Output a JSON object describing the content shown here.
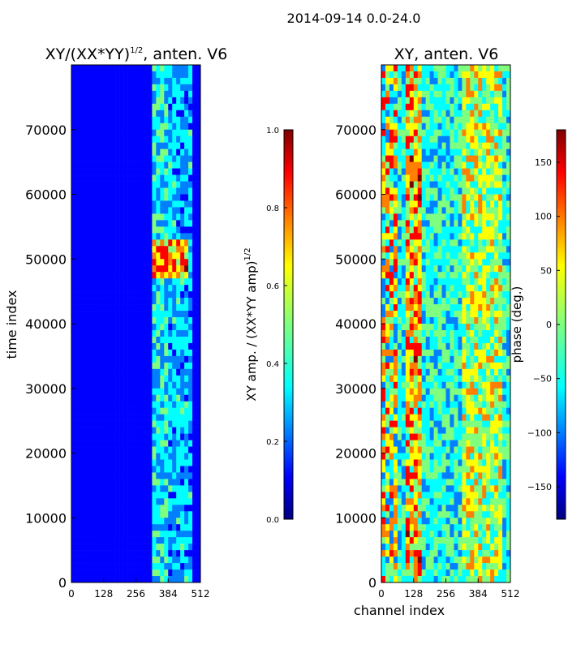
{
  "figure": {
    "suptitle": "2014-09-14 0.0-24.0"
  },
  "chart_data": [
    {
      "type": "heatmap",
      "title_main": "XY/(XX*YY)",
      "title_exp": "1/2",
      "title_tail": ", anten. V6",
      "xlabel": "",
      "ylabel": "time index",
      "xlim": [
        0,
        512
      ],
      "ylim": [
        0,
        80000
      ],
      "x_ticks": [
        0,
        128,
        256,
        384,
        512
      ],
      "y_ticks": [
        0,
        10000,
        20000,
        30000,
        40000,
        50000,
        60000,
        70000
      ],
      "colormap": "jet",
      "colorbar": {
        "label_main": "XY amp. / (XX*YY amp)",
        "label_exp": "1/2",
        "range": [
          0.0,
          1.0
        ],
        "ticks": [
          "0.0",
          "0.2",
          "0.4",
          "0.6",
          "0.8",
          "1.0"
        ],
        "tick_values": [
          0.0,
          0.2,
          0.4,
          0.6,
          0.8,
          1.0
        ]
      }
    },
    {
      "type": "heatmap",
      "title": "XY, anten. V6",
      "xlabel": "channel index",
      "ylabel": "",
      "xlim": [
        0,
        512
      ],
      "ylim": [
        0,
        80000
      ],
      "x_ticks": [
        0,
        128,
        256,
        384,
        512
      ],
      "y_ticks": [
        0,
        10000,
        20000,
        30000,
        40000,
        50000,
        60000,
        70000
      ],
      "colormap": "jet",
      "colorbar": {
        "label": "phase (deg.)",
        "range": [
          -180,
          180
        ],
        "ticks": [
          "−150",
          "−100",
          "−50",
          "0",
          "50",
          "100",
          "150"
        ],
        "tick_values": [
          -150,
          -100,
          -50,
          0,
          50,
          100,
          150
        ]
      }
    }
  ],
  "colors": {
    "jet": [
      "#00007f",
      "#0000ff",
      "#007fff",
      "#00ffff",
      "#7fff7f",
      "#ffff00",
      "#ff7f00",
      "#ff0000",
      "#7f0000"
    ]
  }
}
